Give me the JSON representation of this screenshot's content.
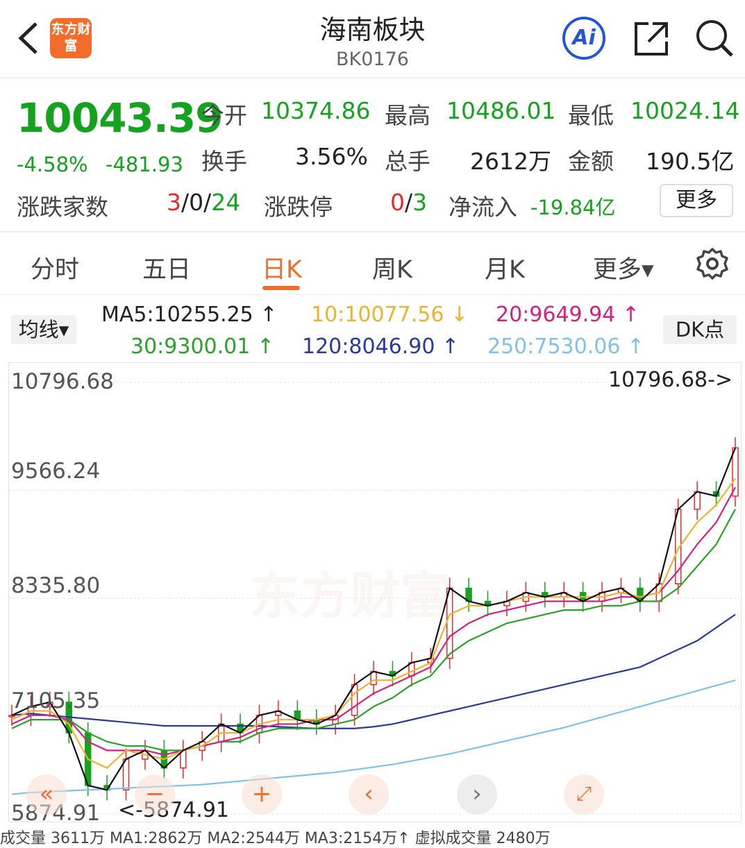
{
  "header": {
    "title": "海南板块",
    "code": "BK0176",
    "logo_text": "东方财富",
    "ai_label": "Ai"
  },
  "quote": {
    "price": "10043.39",
    "change_pct": "-4.58%",
    "change": "-481.93",
    "open_label": "今开",
    "open": "10374.86",
    "high_label": "最高",
    "high": "10486.01",
    "low_label": "最低",
    "low": "10024.14",
    "turnover_label": "换手",
    "turnover": "3.56%",
    "volume_label": "总手",
    "volume": "2612万",
    "amount_label": "金额",
    "amount": "190.5亿",
    "updown_label": "涨跌家数",
    "up": "3",
    "flat": "0",
    "down": "24",
    "limit_label": "涨跌停",
    "limit_up": "0",
    "limit_down": "3",
    "netflow_label": "净流入",
    "netflow": "-19.84亿",
    "more": "更多"
  },
  "tabs": [
    "分时",
    "五日",
    "日K",
    "周K",
    "月K",
    "更多▾"
  ],
  "active_tab": "日K",
  "ma": {
    "button": "均线▾",
    "dk": "DK点",
    "ma5": "MA5:10255.25 ↑",
    "ma10": "10:10077.56 ↓",
    "ma20": "20:9649.94 ↑",
    "ma30": "30:9300.01 ↑",
    "ma120": "120:8046.90 ↑",
    "ma250": "250:7530.06 ↑"
  },
  "colors": {
    "up": "#e8272b",
    "down": "#15a21f",
    "ma5": "#111111",
    "ma10": "#f0b22e",
    "ma20": "#d6207d",
    "ma30": "#2aa22a",
    "ma120": "#283a9a",
    "ma250": "#7ec1ea",
    "accent": "#f26d2b"
  },
  "chart_data": {
    "type": "line",
    "y_ticks": [
      "10796.68",
      "9566.24",
      "8335.80",
      "7105.35",
      "5874.91"
    ],
    "ylim": [
      5874.91,
      10796.68
    ],
    "annotations": {
      "max": "10796.68->",
      "min": "<-5874.91"
    },
    "series": [
      {
        "name": "MA5",
        "values": [
          7000,
          7100,
          7150,
          6800,
          6200,
          6150,
          6500,
          6600,
          6400,
          6600,
          6700,
          6900,
          6800,
          7000,
          7050,
          6950,
          6900,
          7000,
          7350,
          7500,
          7450,
          7600,
          7650,
          8450,
          8300,
          8250,
          8300,
          8400,
          8350,
          8400,
          8300,
          8400,
          8450,
          8300,
          8500,
          9350,
          9550,
          9500,
          10050
        ]
      },
      {
        "name": "MA10",
        "values": [
          6950,
          7050,
          7050,
          6900,
          6500,
          6400,
          6600,
          6550,
          6500,
          6600,
          6650,
          6800,
          6800,
          6900,
          6950,
          6950,
          6950,
          7000,
          7250,
          7400,
          7400,
          7500,
          7600,
          8150,
          8250,
          8250,
          8300,
          8350,
          8350,
          8350,
          8350,
          8350,
          8400,
          8350,
          8400,
          8900,
          9200,
          9400,
          9700
        ]
      },
      {
        "name": "MA20",
        "values": [
          6900,
          7000,
          7000,
          6950,
          6700,
          6600,
          6600,
          6600,
          6550,
          6600,
          6650,
          6700,
          6750,
          6850,
          6900,
          6900,
          6950,
          6950,
          7100,
          7250,
          7350,
          7450,
          7550,
          7900,
          8050,
          8150,
          8200,
          8250,
          8300,
          8300,
          8300,
          8300,
          8350,
          8350,
          8400,
          8650,
          8950,
          9200,
          9600
        ]
      },
      {
        "name": "MA30",
        "values": [
          6850,
          6950,
          6950,
          6950,
          6800,
          6700,
          6650,
          6650,
          6600,
          6600,
          6650,
          6700,
          6700,
          6800,
          6850,
          6850,
          6850,
          6900,
          6950,
          7100,
          7200,
          7350,
          7450,
          7700,
          7850,
          7950,
          8050,
          8100,
          8150,
          8200,
          8200,
          8250,
          8250,
          8300,
          8300,
          8450,
          8700,
          8950,
          9350
        ]
      },
      {
        "name": "MA120",
        "values": [
          7000,
          7020,
          7000,
          6980,
          6960,
          6940,
          6920,
          6900,
          6880,
          6880,
          6880,
          6880,
          6880,
          6880,
          6870,
          6860,
          6850,
          6850,
          6850,
          6870,
          6900,
          6950,
          7000,
          7050,
          7100,
          7150,
          7200,
          7250,
          7300,
          7350,
          7400,
          7450,
          7500,
          7550,
          7650,
          7750,
          7850,
          8000,
          8150
        ]
      },
      {
        "name": "MA250",
        "values": [
          6100,
          6120,
          6130,
          6140,
          6150,
          6160,
          6170,
          6180,
          6190,
          6200,
          6210,
          6230,
          6250,
          6270,
          6290,
          6310,
          6330,
          6350,
          6380,
          6410,
          6440,
          6480,
          6520,
          6560,
          6610,
          6660,
          6710,
          6760,
          6810,
          6860,
          6920,
          6980,
          7040,
          7100,
          7160,
          7220,
          7280,
          7340,
          7400
        ]
      }
    ]
  },
  "footer": {
    "text": "成交量  3611万  MA1:2862万  MA2:2544万  MA3:2154万↑ 虚拟成交量 2480万"
  }
}
